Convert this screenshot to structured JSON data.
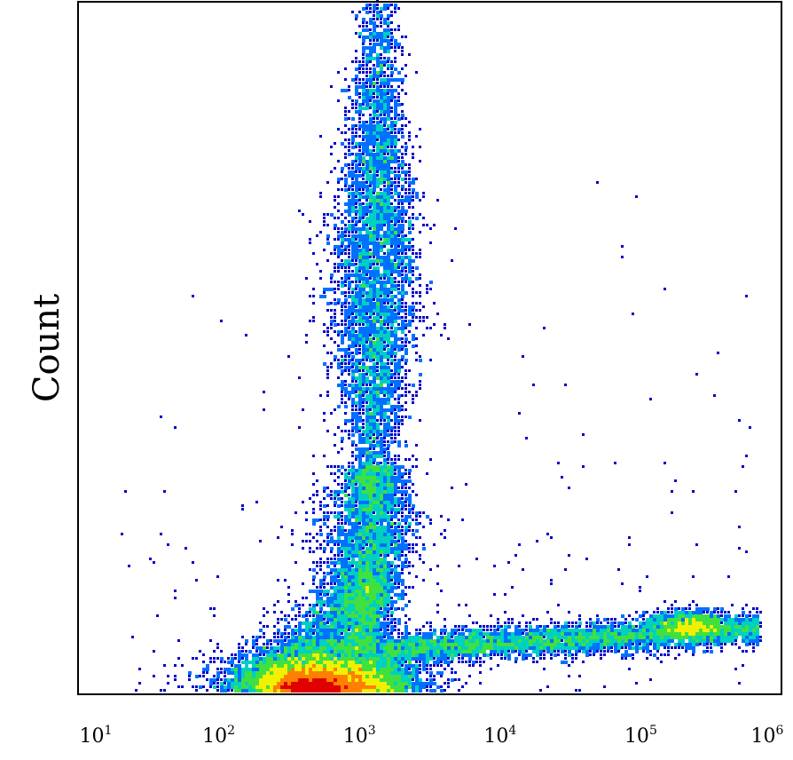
{
  "chart_data": {
    "type": "scatter",
    "title": "",
    "xlabel": "",
    "ylabel": "Count",
    "x_scale": "log",
    "xlim": [
      10,
      1000000
    ],
    "x_ticks": [
      {
        "value": 10,
        "base": "10",
        "exp": "1"
      },
      {
        "value": 100,
        "base": "10",
        "exp": "2"
      },
      {
        "value": 1000,
        "base": "10",
        "exp": "3"
      },
      {
        "value": 10000,
        "base": "10",
        "exp": "4"
      },
      {
        "value": 100000,
        "base": "10",
        "exp": "5"
      },
      {
        "value": 1000000,
        "base": "10",
        "exp": "6"
      }
    ],
    "ylim": [
      0,
      1
    ],
    "grid": false,
    "density_colormap": [
      "#0000c8",
      "#0070ff",
      "#00d0c0",
      "#40e040",
      "#f0f000",
      "#ff8000",
      "#e00000"
    ],
    "populations": [
      {
        "label": "upper cluster",
        "x_center": 1300,
        "x_spread_decades": 0.13,
        "y_from": 0.12,
        "y_to": 1.0,
        "density": "medium"
      },
      {
        "label": "middle cluster",
        "x_center": 1150,
        "x_spread_decades": 0.15,
        "y_from": 0.06,
        "y_to": 0.33,
        "density": "medium"
      },
      {
        "label": "baseline cluster",
        "x_center": 550,
        "x_spread_decades": 0.3,
        "y_from": 0.0,
        "y_to": 0.08,
        "density": "high"
      },
      {
        "label": "horizontal tail",
        "x_from": 1500,
        "x_to": 700000,
        "y_from": 0.06,
        "y_to": 0.14,
        "density": "low"
      }
    ]
  }
}
